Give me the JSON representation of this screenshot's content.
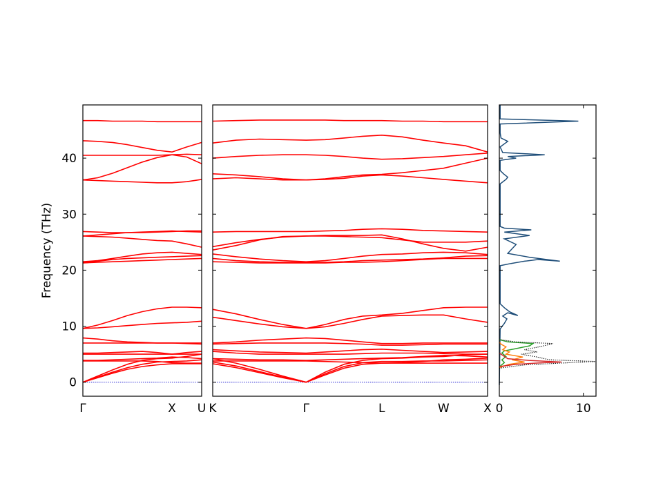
{
  "chart_data": {
    "type": "line",
    "ylabel": "Frequency (THz)",
    "ylim": [
      -2.5,
      49.5
    ],
    "yticks": [
      0,
      10,
      20,
      30,
      40
    ],
    "grid": false,
    "band_color": "#ff0000",
    "zero_line_color": "#0000cc",
    "panels": [
      {
        "name": "Γ-X-U",
        "kind": "band",
        "xlim": [
          0,
          1.0
        ],
        "ticks": [
          {
            "x": 0.0,
            "label": "Γ"
          },
          {
            "x": 0.75,
            "label": "X"
          },
          {
            "x": 1.0,
            "label": "U"
          }
        ],
        "x": [
          0,
          0.125,
          0.25,
          0.375,
          0.5,
          0.625,
          0.75,
          0.875,
          1.0
        ],
        "bands": [
          [
            0,
            0.8,
            1.6,
            2.3,
            2.8,
            3.1,
            3.3,
            3.3,
            3.3
          ],
          [
            0,
            0.9,
            1.8,
            2.6,
            3.2,
            3.6,
            3.7,
            3.8,
            4.0
          ],
          [
            0,
            1.1,
            2.2,
            3.2,
            3.9,
            4.2,
            4.3,
            4.6,
            5.0
          ],
          [
            3.8,
            3.8,
            3.8,
            3.8,
            3.8,
            3.7,
            3.5,
            3.4,
            3.4
          ],
          [
            3.9,
            3.9,
            4.0,
            4.1,
            4.2,
            4.3,
            4.5,
            4.4,
            4.2
          ],
          [
            5.0,
            5.0,
            5.0,
            5.0,
            5.0,
            5.0,
            5.0,
            5.0,
            5.0
          ],
          [
            5.2,
            5.2,
            5.3,
            5.4,
            5.5,
            5.3,
            5.0,
            5.3,
            5.5
          ],
          [
            7.0,
            7.0,
            7.0,
            7.0,
            7.0,
            7.0,
            7.0,
            6.9,
            6.8
          ],
          [
            7.9,
            7.7,
            7.4,
            7.2,
            7.1,
            7.0,
            7.0,
            7.0,
            7.0
          ],
          [
            9.6,
            9.7,
            9.9,
            10.1,
            10.3,
            10.5,
            10.6,
            10.7,
            10.9
          ],
          [
            9.6,
            10.2,
            11.0,
            11.9,
            12.6,
            13.1,
            13.4,
            13.4,
            13.3
          ],
          [
            21.3,
            21.4,
            21.5,
            21.6,
            21.7,
            21.8,
            21.9,
            22.0,
            22.1
          ],
          [
            21.4,
            21.6,
            21.9,
            22.1,
            22.2,
            22.3,
            22.4,
            22.5,
            22.6
          ],
          [
            21.5,
            21.7,
            22.1,
            22.5,
            22.9,
            23.1,
            23.2,
            23.0,
            22.8
          ],
          [
            26.1,
            26.0,
            25.9,
            25.7,
            25.5,
            25.3,
            25.2,
            24.7,
            24.1
          ],
          [
            26.1,
            26.3,
            26.5,
            26.7,
            26.8,
            26.9,
            27.0,
            26.9,
            26.8
          ],
          [
            26.9,
            26.8,
            26.7,
            26.7,
            26.7,
            26.8,
            26.9,
            27.0,
            27.0
          ],
          [
            36.1,
            36.0,
            35.9,
            35.8,
            35.7,
            35.6,
            35.6,
            35.8,
            36.2
          ],
          [
            36.1,
            36.5,
            37.3,
            38.3,
            39.3,
            40.1,
            40.6,
            40.2,
            39.0
          ],
          [
            40.5,
            40.5,
            40.5,
            40.5,
            40.5,
            40.5,
            40.6,
            40.7,
            40.6
          ],
          [
            43.1,
            43.0,
            42.8,
            42.4,
            41.9,
            41.4,
            41.1,
            42.0,
            42.8
          ],
          [
            46.7,
            46.7,
            46.6,
            46.6,
            46.6,
            46.5,
            46.5,
            46.5,
            46.5
          ]
        ]
      },
      {
        "name": "K-Γ-L-W-X",
        "kind": "band",
        "xlim": [
          0,
          1.0
        ],
        "ticks": [
          {
            "x": 0.0,
            "label": "K"
          },
          {
            "x": 0.34,
            "label": "Γ"
          },
          {
            "x": 0.615,
            "label": "L"
          },
          {
            "x": 0.84,
            "label": "W"
          },
          {
            "x": 1.0,
            "label": "X"
          }
        ],
        "x": [
          0,
          0.085,
          0.17,
          0.255,
          0.34,
          0.409,
          0.478,
          0.546,
          0.615,
          0.69,
          0.765,
          0.84,
          0.92,
          1.0
        ],
        "bands": [
          [
            3.3,
            2.6,
            1.7,
            0.8,
            0,
            1.3,
            2.5,
            3.2,
            3.4,
            3.4,
            3.4,
            3.4,
            3.4,
            3.4
          ],
          [
            3.6,
            2.9,
            1.9,
            0.9,
            0,
            1.5,
            2.8,
            3.5,
            3.7,
            3.7,
            3.8,
            3.8,
            3.9,
            4.0
          ],
          [
            4.2,
            3.4,
            2.3,
            1.1,
            0,
            1.8,
            3.2,
            3.9,
            4.2,
            4.3,
            4.5,
            4.6,
            4.9,
            5.0
          ],
          [
            3.8,
            3.8,
            3.8,
            3.8,
            3.8,
            3.7,
            3.6,
            3.5,
            3.4,
            3.5,
            3.7,
            4.0,
            4.1,
            4.3
          ],
          [
            4.2,
            4.1,
            4.0,
            4.0,
            3.9,
            4.0,
            4.1,
            4.2,
            4.3,
            4.4,
            4.6,
            4.8,
            4.7,
            4.5
          ],
          [
            5.5,
            5.2,
            5.0,
            5.0,
            5.0,
            5.0,
            5.0,
            5.1,
            5.2,
            5.2,
            5.2,
            5.1,
            5.0,
            5.0
          ],
          [
            5.8,
            5.6,
            5.4,
            5.3,
            5.2,
            5.4,
            5.6,
            5.8,
            5.9,
            5.7,
            5.5,
            5.3,
            5.4,
            5.5
          ],
          [
            6.8,
            6.9,
            7.0,
            7.0,
            7.0,
            7.0,
            6.9,
            6.8,
            6.6,
            6.6,
            6.7,
            6.8,
            6.8,
            6.8
          ],
          [
            7.0,
            7.2,
            7.5,
            7.7,
            7.9,
            7.8,
            7.5,
            7.2,
            6.9,
            6.9,
            7.0,
            7.0,
            7.0,
            7.0
          ],
          [
            11.6,
            11.0,
            10.4,
            9.9,
            9.6,
            9.9,
            10.5,
            11.2,
            11.8,
            11.9,
            12.0,
            12.0,
            11.3,
            10.7
          ],
          [
            13.0,
            12.2,
            11.2,
            10.3,
            9.6,
            10.3,
            11.2,
            11.8,
            12.0,
            12.3,
            12.8,
            13.3,
            13.4,
            13.4
          ],
          [
            21.5,
            21.4,
            21.3,
            21.3,
            21.3,
            21.3,
            21.4,
            21.4,
            21.5,
            21.7,
            21.9,
            22.1,
            22.1,
            22.1
          ],
          [
            22.1,
            21.7,
            21.5,
            21.4,
            21.4,
            21.4,
            21.5,
            21.7,
            21.8,
            21.9,
            22.0,
            22.2,
            22.5,
            22.6
          ],
          [
            22.9,
            22.4,
            22.0,
            21.7,
            21.5,
            21.7,
            22.1,
            22.5,
            22.8,
            22.9,
            23.1,
            23.2,
            23.1,
            22.8
          ],
          [
            24.2,
            24.9,
            25.5,
            25.9,
            26.1,
            26.1,
            26.0,
            25.9,
            25.8,
            25.4,
            25.0,
            25.0,
            25.0,
            25.2
          ],
          [
            23.6,
            24.4,
            25.4,
            26.0,
            26.1,
            26.2,
            26.2,
            26.2,
            26.3,
            25.6,
            24.7,
            23.9,
            23.4,
            24.1
          ],
          [
            26.8,
            26.9,
            26.9,
            26.9,
            26.9,
            27.0,
            27.1,
            27.3,
            27.4,
            27.3,
            27.1,
            27.0,
            26.9,
            26.8
          ],
          [
            36.3,
            36.5,
            36.3,
            36.1,
            36.1,
            36.2,
            36.4,
            36.8,
            37.0,
            36.8,
            36.5,
            36.2,
            35.9,
            35.6
          ],
          [
            37.2,
            37.0,
            36.7,
            36.3,
            36.1,
            36.3,
            36.7,
            37.0,
            37.1,
            37.4,
            37.8,
            38.2,
            39.1,
            40.0
          ],
          [
            40.0,
            40.3,
            40.5,
            40.6,
            40.6,
            40.5,
            40.3,
            40.0,
            39.8,
            39.9,
            40.1,
            40.3,
            40.6,
            40.9
          ],
          [
            42.7,
            43.2,
            43.4,
            43.3,
            43.2,
            43.3,
            43.6,
            43.9,
            44.1,
            43.8,
            43.2,
            42.7,
            42.2,
            41.1
          ],
          [
            46.6,
            46.7,
            46.8,
            46.8,
            46.8,
            46.8,
            46.7,
            46.7,
            46.7,
            46.6,
            46.6,
            46.5,
            46.5,
            46.5
          ]
        ]
      },
      {
        "name": "DOS",
        "kind": "dos",
        "xlim": [
          0,
          11.5
        ],
        "ticks": [
          {
            "x": 0,
            "label": "0"
          },
          {
            "x": 10,
            "label": "10"
          }
        ],
        "series": [
          {
            "color": "#1f4e79",
            "points": [
              [
                0,
                -0.5
              ],
              [
                0.1,
                9.5
              ],
              [
                0.6,
                10.5
              ],
              [
                0.9,
                11.3
              ],
              [
                0.4,
                11.8
              ],
              [
                1.0,
                12.4
              ],
              [
                2.2,
                11.9
              ],
              [
                1.2,
                12.6
              ],
              [
                0.6,
                13.3
              ],
              [
                0.1,
                14.0
              ],
              [
                0.1,
                20.8
              ],
              [
                1.4,
                21.2
              ],
              [
                3.0,
                21.6
              ],
              [
                4.6,
                21.9
              ],
              [
                7.2,
                21.6
              ],
              [
                3.6,
                22.3
              ],
              [
                1.0,
                23.0
              ],
              [
                2.0,
                24.6
              ],
              [
                0.6,
                25.6
              ],
              [
                3.6,
                26.2
              ],
              [
                0.6,
                26.8
              ],
              [
                3.8,
                27.2
              ],
              [
                0.6,
                27.5
              ],
              [
                0.1,
                27.8
              ],
              [
                0.1,
                35.4
              ],
              [
                0.8,
                36.2
              ],
              [
                1.0,
                36.6
              ],
              [
                0.5,
                37.2
              ],
              [
                0.1,
                37.8
              ],
              [
                0.1,
                39.6
              ],
              [
                2.0,
                40.0
              ],
              [
                1.0,
                40.3
              ],
              [
                5.4,
                40.6
              ],
              [
                0.4,
                41.0
              ],
              [
                0.1,
                42.0
              ],
              [
                1.0,
                43.0
              ],
              [
                0.2,
                43.6
              ],
              [
                0.1,
                44.5
              ],
              [
                0.1,
                46.1
              ],
              [
                9.4,
                46.6
              ],
              [
                0.1,
                47.0
              ],
              [
                0.1,
                49.5
              ]
            ]
          },
          {
            "color": "#2ca02c",
            "points": [
              [
                0,
                2.6
              ],
              [
                0.2,
                3.0
              ],
              [
                0.6,
                3.5
              ],
              [
                0.3,
                4.0
              ],
              [
                0.8,
                4.6
              ],
              [
                0.3,
                5.2
              ],
              [
                0.6,
                5.6
              ],
              [
                2.0,
                6.0
              ],
              [
                3.6,
                6.5
              ],
              [
                4.0,
                6.9
              ],
              [
                1.0,
                7.2
              ],
              [
                0,
                7.6
              ]
            ]
          },
          {
            "color": "#ff7f0e",
            "points": [
              [
                0,
                2.6
              ],
              [
                1.2,
                3.2
              ],
              [
                3.0,
                3.6
              ],
              [
                1.5,
                4.0
              ],
              [
                2.8,
                4.5
              ],
              [
                0.8,
                5.0
              ],
              [
                1.2,
                5.4
              ],
              [
                0.4,
                5.8
              ],
              [
                0.8,
                6.3
              ],
              [
                0.2,
                6.8
              ],
              [
                0,
                7.2
              ]
            ]
          },
          {
            "color": "#d62728",
            "points": [
              [
                0,
                2.8
              ],
              [
                2.0,
                3.2
              ],
              [
                5.5,
                3.5
              ],
              [
                7.4,
                3.6
              ],
              [
                3.5,
                3.9
              ],
              [
                1.0,
                4.2
              ],
              [
                0.4,
                4.8
              ],
              [
                0,
                5.2
              ]
            ]
          },
          {
            "color": "#0a0a0a",
            "dashed": true,
            "points": [
              [
                0,
                2.5
              ],
              [
                3.0,
                3.1
              ],
              [
                8.5,
                3.5
              ],
              [
                11.5,
                3.7
              ],
              [
                6.0,
                4.0
              ],
              [
                4.5,
                4.5
              ],
              [
                2.6,
                5.0
              ],
              [
                4.5,
                5.4
              ],
              [
                3.0,
                5.8
              ],
              [
                5.0,
                6.4
              ],
              [
                6.4,
                6.9
              ],
              [
                2.0,
                7.2
              ],
              [
                0,
                7.6
              ]
            ]
          }
        ]
      }
    ]
  }
}
